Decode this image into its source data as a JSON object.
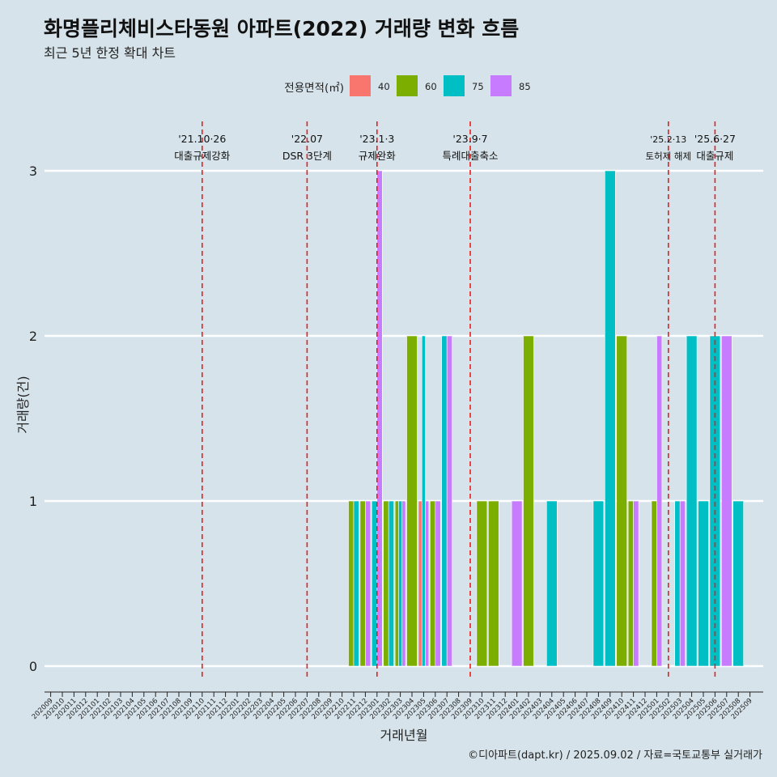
{
  "title": "화명플리체비스타동원 아파트(2022) 거래량 변화 흐름",
  "subtitle": "최근 5년 한정 확대 차트",
  "caption": "©디아파트(dapt.kr) / 2025.09.02 / 자료=국토교통부 실거래가",
  "chart_data": {
    "type": "bar",
    "xlabel": "거래년월",
    "ylabel": "거래량(건)",
    "ylim": [
      0,
      3
    ],
    "yticks": [
      0,
      1,
      2,
      3
    ],
    "grid": "horizontal major only",
    "legend": {
      "title": "전용면적(㎡)",
      "placement": "top",
      "entries": [
        {
          "label": "40",
          "color": "#F8766D"
        },
        {
          "label": "60",
          "color": "#7CAE00"
        },
        {
          "label": "75",
          "color": "#00BFC4"
        },
        {
          "label": "85",
          "color": "#C77CFF"
        }
      ]
    },
    "categories": [
      "202009",
      "202010",
      "202011",
      "202012",
      "202101",
      "202102",
      "202103",
      "202104",
      "202105",
      "202106",
      "202107",
      "202108",
      "202109",
      "202110",
      "202111",
      "202112",
      "202201",
      "202202",
      "202203",
      "202204",
      "202205",
      "202206",
      "202207",
      "202208",
      "202209",
      "202210",
      "202211",
      "202212",
      "202301",
      "202302",
      "202303",
      "202304",
      "202305",
      "202306",
      "202307",
      "202308",
      "202309",
      "202310",
      "202311",
      "202312",
      "202401",
      "202402",
      "202403",
      "202404",
      "202405",
      "202406",
      "202407",
      "202408",
      "202409",
      "202410",
      "202411",
      "202412",
      "202501",
      "202502",
      "202503",
      "202504",
      "202505",
      "202506",
      "202507",
      "202508",
      "202509"
    ],
    "bars": [
      {
        "month": "202211",
        "values": {
          "60": 1,
          "75": 1
        }
      },
      {
        "month": "202212",
        "values": {
          "60": 1,
          "85": 1
        }
      },
      {
        "month": "202301",
        "values": {
          "75": 1,
          "85": 3
        }
      },
      {
        "month": "202302",
        "values": {
          "60": 1,
          "75": 1
        }
      },
      {
        "month": "202303",
        "values": {
          "60": 1,
          "75": 1,
          "85": 1
        }
      },
      {
        "month": "202304",
        "values": {
          "60": 2
        }
      },
      {
        "month": "202305",
        "values": {
          "40": 1,
          "75": 2,
          "85": 1
        }
      },
      {
        "month": "202306",
        "values": {
          "60": 1,
          "85": 1
        }
      },
      {
        "month": "202307",
        "values": {
          "75": 2,
          "85": 2
        }
      },
      {
        "month": "202310",
        "values": {
          "60": 1
        }
      },
      {
        "month": "202311",
        "values": {
          "60": 1
        }
      },
      {
        "month": "202401",
        "values": {
          "85": 1
        }
      },
      {
        "month": "202402",
        "values": {
          "60": 2
        }
      },
      {
        "month": "202404",
        "values": {
          "75": 1
        }
      },
      {
        "month": "202408",
        "values": {
          "75": 1
        }
      },
      {
        "month": "202409",
        "values": {
          "75": 3
        }
      },
      {
        "month": "202410",
        "values": {
          "60": 2
        }
      },
      {
        "month": "202411",
        "values": {
          "60": 1,
          "85": 1
        }
      },
      {
        "month": "202501",
        "values": {
          "60": 1,
          "85": 2
        }
      },
      {
        "month": "202503",
        "values": {
          "75": 1,
          "85": 1
        }
      },
      {
        "month": "202504",
        "values": {
          "75": 2
        }
      },
      {
        "month": "202505",
        "values": {
          "75": 1
        }
      },
      {
        "month": "202506",
        "values": {
          "75": 2
        }
      },
      {
        "month": "202507",
        "values": {
          "85": 2
        }
      },
      {
        "month": "202508",
        "values": {
          "75": 1
        }
      }
    ],
    "events": [
      {
        "month": "202110",
        "date": "'21.10·26",
        "label": "대출규제강화"
      },
      {
        "month": "202207",
        "date": "'22.07",
        "label": "DSR 3단계"
      },
      {
        "month": "202301",
        "date": "'23.1·3",
        "label": "규제완화"
      },
      {
        "month": "202309",
        "date": "'23.9·7",
        "label": "특례대출축소"
      },
      {
        "month": "202502",
        "date": "'25.2·13",
        "label": "토허제 해제"
      },
      {
        "month": "202506",
        "date": "'25.6·27",
        "label": "대출규제"
      }
    ]
  }
}
